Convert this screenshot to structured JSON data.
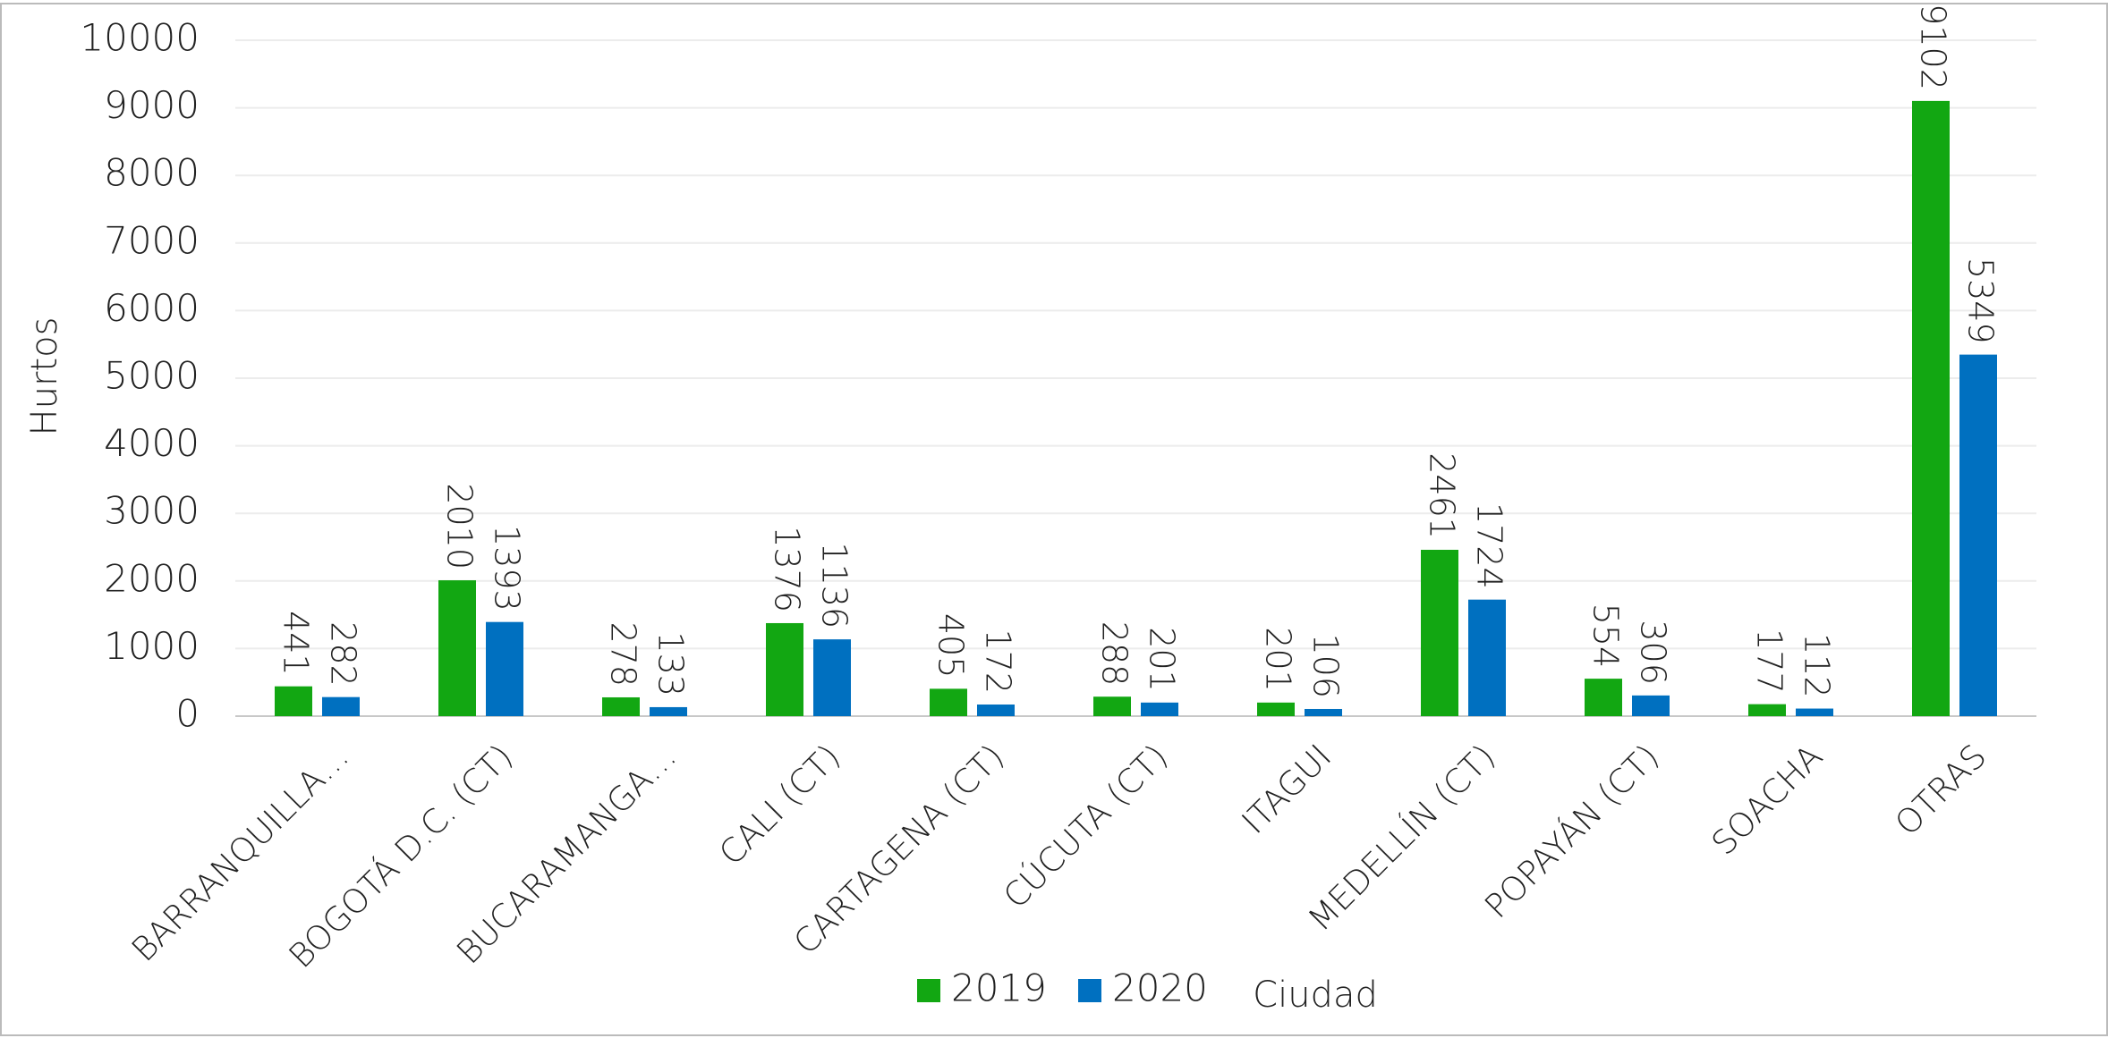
{
  "chart_data": {
    "type": "bar",
    "y_label": "Hurtos",
    "x_label": "Ciudad",
    "categories": [
      "BARRANQUILLA…",
      "BOGOTÁ D.C. (CT)",
      "BUCARAMANGA…",
      "CALI (CT)",
      "CARTAGENA (CT)",
      "CÚCUTA (CT)",
      "ITAGUI",
      "MEDELLÍN (CT)",
      "POPAYÁN (CT)",
      "SOACHA",
      "OTRAS"
    ],
    "series": [
      {
        "name": "2019",
        "color": "#12a712",
        "values": [
          441,
          2010,
          278,
          1376,
          405,
          288,
          201,
          2461,
          554,
          177,
          9102
        ]
      },
      {
        "name": "2020",
        "color": "#0070c0",
        "values": [
          282,
          1393,
          133,
          1136,
          172,
          201,
          106,
          1724,
          306,
          112,
          5349
        ]
      }
    ],
    "ylim": [
      0,
      10000
    ],
    "yticks": [
      0,
      1000,
      2000,
      3000,
      4000,
      5000,
      6000,
      7000,
      8000,
      9000,
      10000
    ],
    "grid": true,
    "legend": "bottom"
  }
}
